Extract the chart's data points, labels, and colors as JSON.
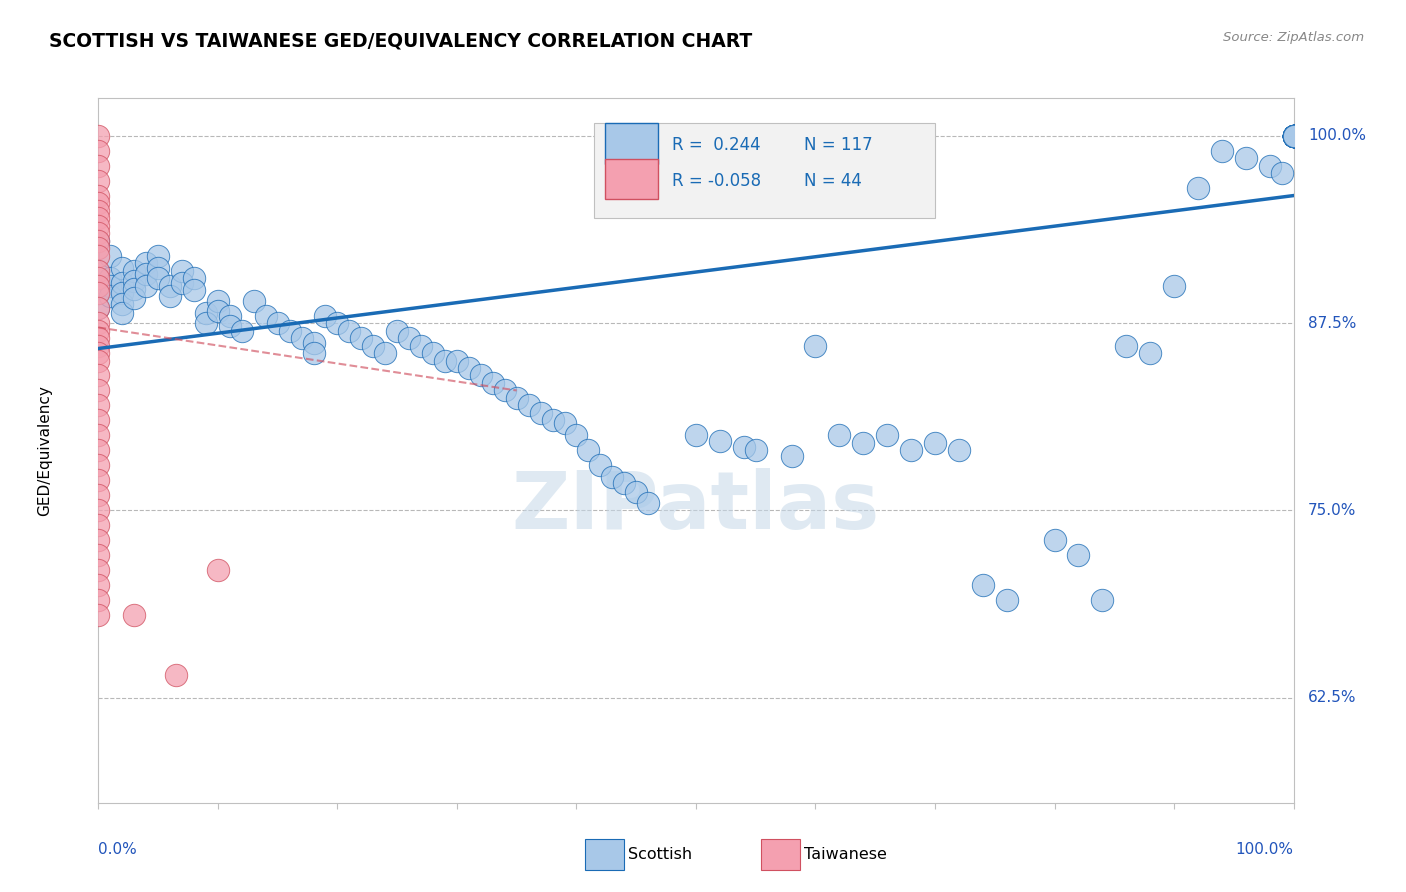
{
  "title": "SCOTTISH VS TAIWANESE GED/EQUIVALENCY CORRELATION CHART",
  "source": "Source: ZipAtlas.com",
  "ylabel": "GED/Equivalency",
  "ytick_labels": [
    "100.0%",
    "87.5%",
    "75.0%",
    "62.5%"
  ],
  "ytick_values": [
    1.0,
    0.875,
    0.75,
    0.625
  ],
  "xlim": [
    0.0,
    1.0
  ],
  "ylim": [
    0.555,
    1.025
  ],
  "legend_scottish_R": "0.244",
  "legend_scottish_N": "117",
  "legend_taiwanese_R": "-0.058",
  "legend_taiwanese_N": "44",
  "scottish_color": "#a8c8e8",
  "taiwanese_color": "#f4a0b0",
  "trend_scottish_color": "#1a6bb5",
  "trend_taiwanese_color": "#d05060",
  "watermark": "ZIPatlas",
  "scottish_x": [
    0.0,
    0.0,
    0.0,
    0.0,
    0.01,
    0.01,
    0.01,
    0.01,
    0.02,
    0.02,
    0.02,
    0.02,
    0.02,
    0.03,
    0.03,
    0.03,
    0.03,
    0.04,
    0.04,
    0.04,
    0.05,
    0.05,
    0.05,
    0.06,
    0.06,
    0.07,
    0.07,
    0.08,
    0.08,
    0.09,
    0.09,
    0.1,
    0.1,
    0.11,
    0.11,
    0.12,
    0.13,
    0.14,
    0.15,
    0.16,
    0.17,
    0.18,
    0.18,
    0.19,
    0.2,
    0.21,
    0.22,
    0.23,
    0.24,
    0.25,
    0.26,
    0.27,
    0.28,
    0.29,
    0.3,
    0.31,
    0.32,
    0.33,
    0.34,
    0.35,
    0.36,
    0.37,
    0.38,
    0.39,
    0.4,
    0.41,
    0.42,
    0.43,
    0.44,
    0.45,
    0.46,
    0.5,
    0.52,
    0.54,
    0.55,
    0.58,
    0.6,
    0.62,
    0.64,
    0.66,
    0.68,
    0.7,
    0.72,
    0.74,
    0.76,
    0.8,
    0.82,
    0.84,
    0.86,
    0.88,
    0.9,
    0.92,
    0.94,
    0.96,
    0.98,
    0.99,
    1.0,
    1.0,
    1.0,
    1.0,
    1.0,
    1.0,
    1.0,
    1.0,
    1.0,
    1.0,
    1.0,
    1.0,
    1.0,
    1.0,
    1.0,
    1.0,
    1.0,
    1.0,
    1.0,
    1.0,
    1.0,
    1.0
  ],
  "scottish_y": [
    0.93,
    0.91,
    0.895,
    0.885,
    0.92,
    0.905,
    0.9,
    0.893,
    0.912,
    0.902,
    0.895,
    0.888,
    0.882,
    0.91,
    0.903,
    0.898,
    0.892,
    0.915,
    0.908,
    0.9,
    0.92,
    0.912,
    0.905,
    0.9,
    0.893,
    0.91,
    0.902,
    0.905,
    0.897,
    0.882,
    0.875,
    0.89,
    0.883,
    0.88,
    0.873,
    0.87,
    0.89,
    0.88,
    0.875,
    0.87,
    0.865,
    0.862,
    0.855,
    0.88,
    0.875,
    0.87,
    0.865,
    0.86,
    0.855,
    0.87,
    0.865,
    0.86,
    0.855,
    0.85,
    0.85,
    0.845,
    0.84,
    0.835,
    0.83,
    0.825,
    0.82,
    0.815,
    0.81,
    0.808,
    0.8,
    0.79,
    0.78,
    0.772,
    0.768,
    0.762,
    0.755,
    0.8,
    0.796,
    0.792,
    0.79,
    0.786,
    0.86,
    0.8,
    0.795,
    0.8,
    0.79,
    0.795,
    0.79,
    0.7,
    0.69,
    0.73,
    0.72,
    0.69,
    0.86,
    0.855,
    0.9,
    0.965,
    0.99,
    0.985,
    0.98,
    0.975,
    1.0,
    1.0,
    1.0,
    1.0,
    1.0,
    1.0,
    1.0,
    1.0,
    1.0,
    1.0,
    1.0,
    1.0,
    1.0,
    1.0,
    1.0,
    1.0,
    1.0,
    1.0,
    1.0,
    1.0,
    1.0,
    1.0
  ],
  "taiwanese_x": [
    0.0,
    0.0,
    0.0,
    0.0,
    0.0,
    0.0,
    0.0,
    0.0,
    0.0,
    0.0,
    0.0,
    0.0,
    0.0,
    0.0,
    0.0,
    0.0,
    0.0,
    0.0,
    0.0,
    0.0,
    0.0,
    0.0,
    0.0,
    0.0,
    0.0,
    0.0,
    0.0,
    0.0,
    0.0,
    0.0,
    0.0,
    0.0,
    0.0,
    0.0,
    0.0,
    0.0,
    0.0,
    0.0,
    0.0,
    0.0,
    0.0,
    0.03,
    0.065,
    0.1
  ],
  "taiwanese_y": [
    1.0,
    0.99,
    0.98,
    0.97,
    0.96,
    0.955,
    0.95,
    0.945,
    0.94,
    0.935,
    0.93,
    0.925,
    0.92,
    0.91,
    0.905,
    0.9,
    0.895,
    0.885,
    0.875,
    0.87,
    0.865,
    0.86,
    0.855,
    0.85,
    0.84,
    0.83,
    0.82,
    0.81,
    0.8,
    0.79,
    0.78,
    0.77,
    0.76,
    0.75,
    0.74,
    0.73,
    0.72,
    0.71,
    0.7,
    0.69,
    0.68,
    0.68,
    0.64,
    0.71
  ],
  "trend_scot_x0": 0.0,
  "trend_scot_x1": 1.0,
  "trend_scot_y0": 0.858,
  "trend_scot_y1": 0.96,
  "trend_taiwan_x0": 0.0,
  "trend_taiwan_x1": 0.35,
  "trend_taiwan_y0": 0.872,
  "trend_taiwan_y1": 0.83
}
